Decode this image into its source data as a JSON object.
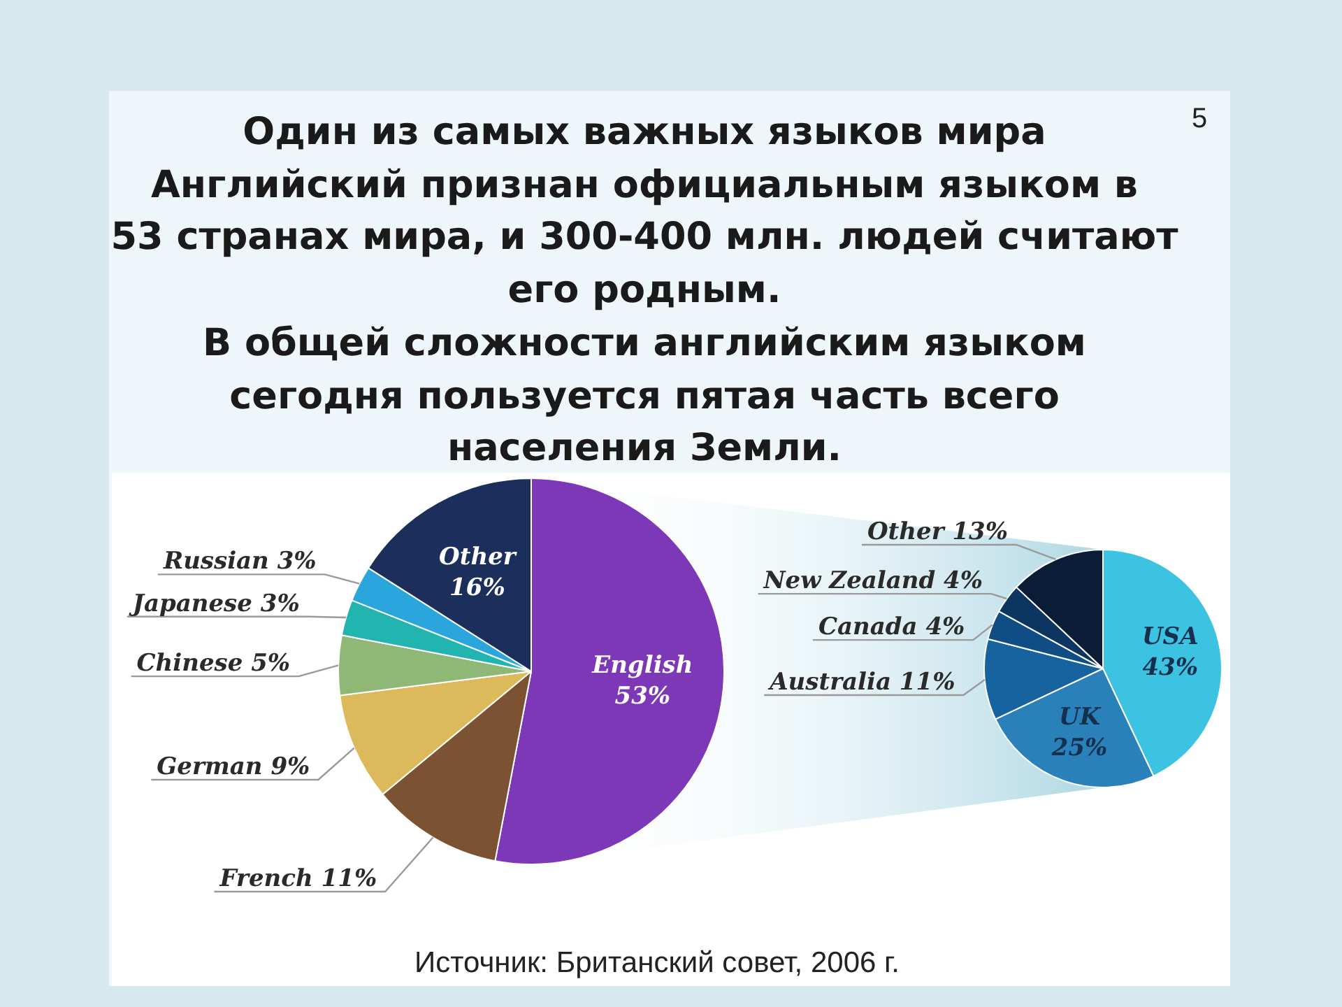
{
  "chart_data": [
    {
      "type": "pie",
      "title": "Один из самых важных языков мира",
      "subtitle": "Английский признан официальным языком в\n53 странах мира, и 300-400 млн. людей считают\nего родным.\nВ общей сложности английским языком\nсегодня пользуется пятая часть всего\nнаселения Земли.",
      "categories": [
        "English",
        "French",
        "German",
        "Chinese",
        "Japanese",
        "Russian",
        "Other"
      ],
      "values": [
        53,
        11,
        9,
        5,
        3,
        3,
        16
      ],
      "colors": [
        "#7d38b8",
        "#7b5232",
        "#dcb95a",
        "#8fb877",
        "#22b5b0",
        "#2aa6dc",
        "#1c2f5c"
      ],
      "value_labels": [
        "53%",
        "11%",
        "9%",
        "5%",
        "3%",
        "3%",
        "16%"
      ],
      "annotations": [
        "5",
        "Источник: Британский совет, 2006 г."
      ]
    },
    {
      "type": "pie",
      "categories": [
        "USA",
        "UK",
        "Australia",
        "Canada",
        "New Zealand",
        "Other"
      ],
      "values": [
        43,
        25,
        11,
        4,
        4,
        13
      ],
      "colors": [
        "#3cc3e2",
        "#2a80b8",
        "#17639f",
        "#104d84",
        "#0c3562",
        "#0a1c36"
      ],
      "value_labels": [
        "43%",
        "25%",
        "11%",
        "4%",
        "4%",
        "13%"
      ]
    }
  ]
}
